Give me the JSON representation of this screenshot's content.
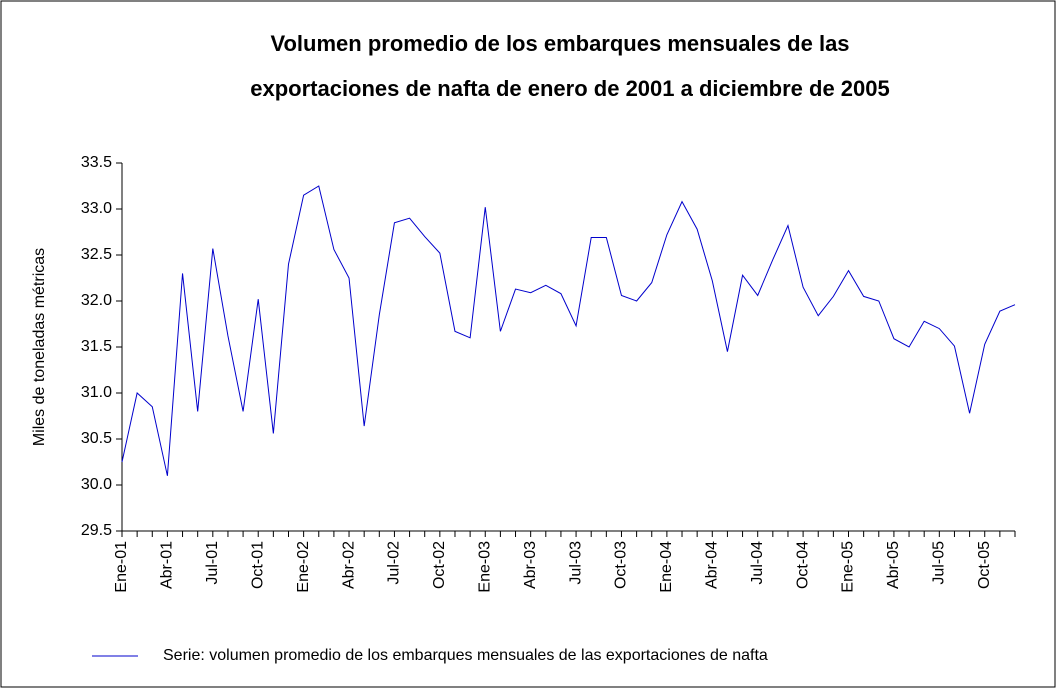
{
  "chart_data": {
    "type": "line",
    "title": [
      "Volumen promedio de los embarques mensuales de las",
      "exportaciones de nafta de enero de 2001 a diciembre de 2005"
    ],
    "y_label": "Miles de toneladas métricas",
    "categories": [
      "Ene-01",
      null,
      null,
      "Abr-01",
      null,
      null,
      "Jul-01",
      null,
      null,
      "Oct-01",
      null,
      null,
      "Ene-02",
      null,
      null,
      "Abr-02",
      null,
      null,
      "Jul-02",
      null,
      null,
      "Oct-02",
      null,
      null,
      "Ene-03",
      null,
      null,
      "Abr-03",
      null,
      null,
      "Jul-03",
      null,
      null,
      "Oct-03",
      null,
      null,
      "Ene-04",
      null,
      null,
      "Abr-04",
      null,
      null,
      "Jul-04",
      null,
      null,
      "Oct-04",
      null,
      null,
      "Ene-05",
      null,
      null,
      "Abr-05",
      null,
      null,
      "Jul-05",
      null,
      null,
      "Oct-05",
      null,
      null
    ],
    "series": [
      {
        "name": "Serie: volumen promedio de los embarques mensuales de las exportaciones de nafta",
        "color": "#0000cc",
        "values": [
          30.25,
          31.0,
          30.85,
          30.1,
          32.3,
          30.8,
          32.57,
          31.62,
          30.8,
          32.02,
          30.56,
          32.4,
          33.15,
          33.25,
          32.56,
          32.25,
          30.64,
          31.85,
          32.85,
          32.9,
          32.7,
          32.52,
          31.67,
          31.6,
          33.02,
          31.67,
          32.13,
          32.09,
          32.17,
          32.08,
          31.73,
          32.69,
          32.69,
          32.06,
          32.0,
          32.2,
          32.72,
          33.08,
          32.78,
          32.22,
          31.45,
          32.28,
          32.06,
          32.45,
          32.82,
          32.15,
          31.84,
          32.05,
          32.33,
          32.05,
          32.0,
          31.59,
          31.5,
          31.78,
          31.7,
          31.51,
          30.78,
          31.53,
          31.89,
          31.96
        ]
      }
    ],
    "ylim": [
      29.5,
      33.5
    ],
    "yticks": [
      29.5,
      {
        "value": 30,
        "label": "30.0"
      },
      30.5,
      {
        "value": 31,
        "label": "31.0"
      },
      31.5,
      {
        "value": 32,
        "label": "32.0"
      },
      32.5,
      {
        "value": 33,
        "label": "33.0"
      },
      33.5
    ],
    "legend": "bottom"
  }
}
